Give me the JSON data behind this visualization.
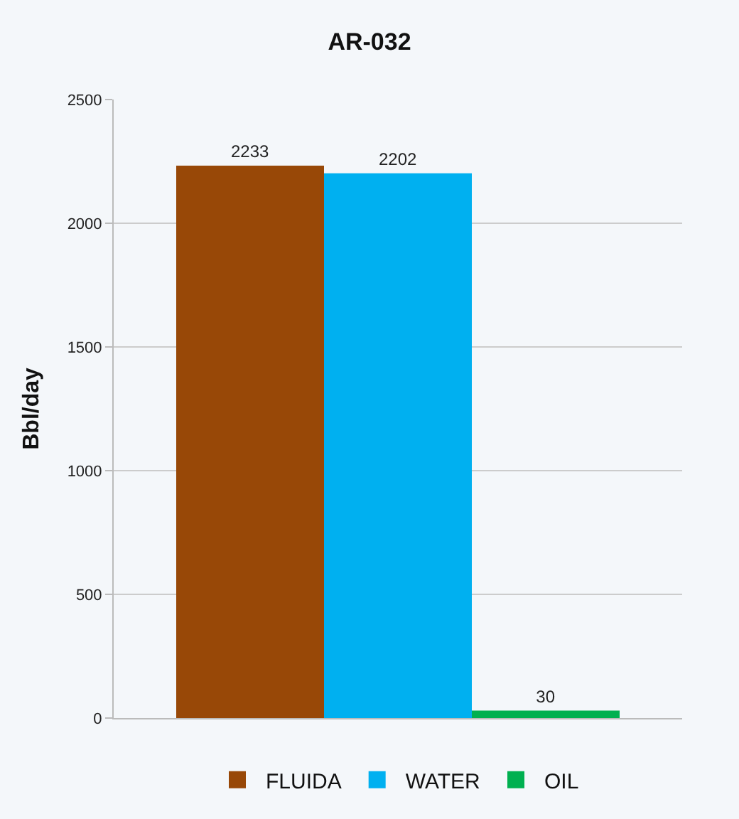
{
  "chart_data": {
    "type": "bar",
    "title": "AR-032",
    "ylabel": "Bbl/day",
    "categories": [
      null
    ],
    "series": [
      {
        "name": "FLUIDA",
        "color": "#984807",
        "values": [
          2233
        ]
      },
      {
        "name": "WATER",
        "color": "#00b0f0",
        "values": [
          2202
        ]
      },
      {
        "name": "OIL",
        "color": "#00b050",
        "values": [
          30
        ]
      }
    ],
    "ylim": [
      0,
      2500
    ],
    "yticks": [
      0,
      500,
      1000,
      1500,
      2000,
      2500
    ],
    "grid": "y",
    "legend": "bottom",
    "data_labels": true
  }
}
